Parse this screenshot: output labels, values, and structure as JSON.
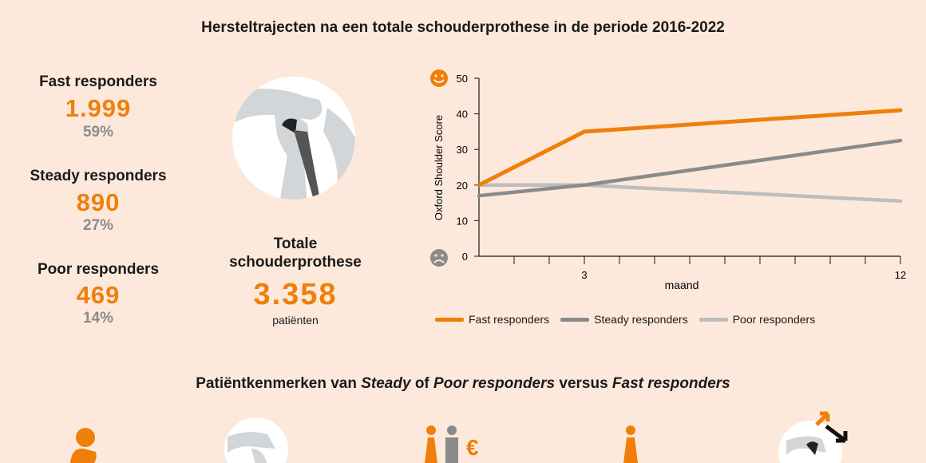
{
  "title": "Hersteltrajecten na een totale schouderprothese in de periode 2016-2022",
  "groups": [
    {
      "label": "Fast responders",
      "count": "1.999",
      "pct": "59%"
    },
    {
      "label": "Steady responders",
      "count": "890",
      "pct": "27%"
    },
    {
      "label": "Poor responders",
      "count": "469",
      "pct": "14%"
    }
  ],
  "total": {
    "title_line1": "Totale",
    "title_line2": "schouderprothese",
    "count": "3.358",
    "unit": "patiënten"
  },
  "subtitle": {
    "p1": "Patiëntkenmerken van ",
    "i1": "Steady",
    "p2": " of ",
    "i2": "Poor responders",
    "p3": " versus ",
    "i3": "Fast responders"
  },
  "colors": {
    "accent": "#f07f0a",
    "steady": "#8a8a8a",
    "poor": "#bdbdbd",
    "background": "#fde9dc"
  },
  "icons": [
    "smiley-happy-icon",
    "smiley-sad-icon",
    "shoulder-prosthesis-icon",
    "person-icon",
    "shoulder-icon",
    "couple-euro-icon",
    "woman-icon",
    "shoulder-arrows-icon"
  ],
  "chart_data": {
    "type": "line",
    "xlabel": "maand",
    "ylabel": "Oxford Shoulder Score",
    "xlim": [
      0,
      12
    ],
    "ylim": [
      0,
      50
    ],
    "x_ticklabels": [
      "3",
      "12"
    ],
    "y_ticks": [
      "0",
      "10",
      "20",
      "30",
      "40",
      "50"
    ],
    "series": [
      {
        "name": "Fast responders",
        "color": "#f07f0a",
        "x": [
          0,
          3,
          12
        ],
        "y": [
          20,
          35,
          41
        ]
      },
      {
        "name": "Steady responders",
        "color": "#8a8a8a",
        "x": [
          0,
          3,
          12
        ],
        "y": [
          17,
          20,
          32.5
        ]
      },
      {
        "name": "Poor responders",
        "color": "#bdbdbd",
        "x": [
          0,
          3,
          12
        ],
        "y": [
          20,
          20,
          15.5
        ]
      }
    ],
    "legend": "bottom"
  }
}
